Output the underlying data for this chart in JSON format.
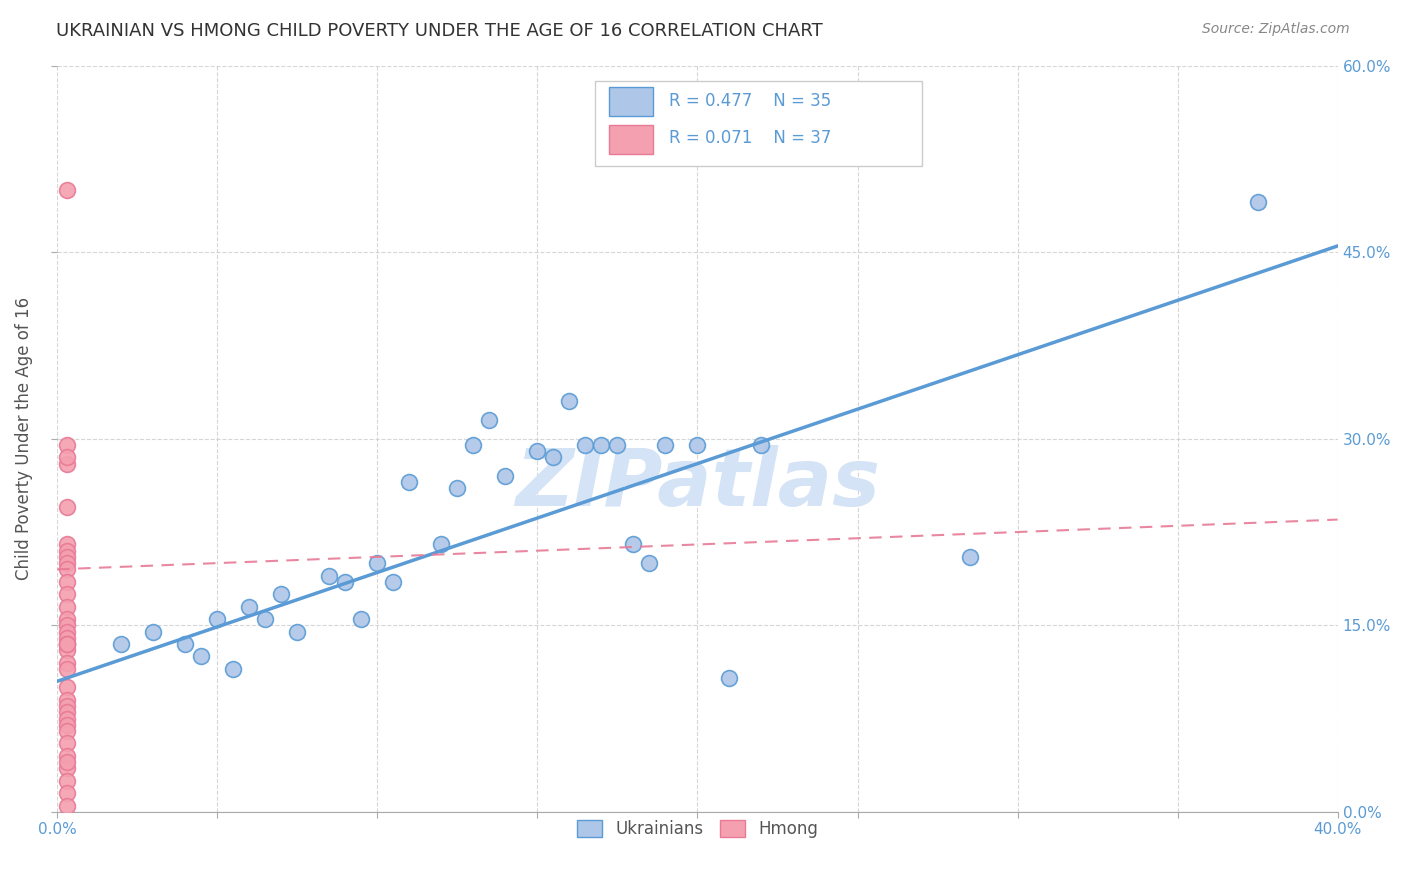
{
  "title": "UKRAINIAN VS HMONG CHILD POVERTY UNDER THE AGE OF 16 CORRELATION CHART",
  "source": "Source: ZipAtlas.com",
  "ylabel": "Child Poverty Under the Age of 16",
  "xlim": [
    0.0,
    0.4
  ],
  "ylim": [
    0.0,
    0.6
  ],
  "xticks": [
    0.0,
    0.05,
    0.1,
    0.15,
    0.2,
    0.25,
    0.3,
    0.35,
    0.4
  ],
  "xtick_labels_show": [
    0.0,
    0.4
  ],
  "yticks": [
    0.0,
    0.15,
    0.3,
    0.45,
    0.6
  ],
  "ytick_labels": [
    "0.0%",
    "15.0%",
    "30.0%",
    "45.0%",
    "60.0%"
  ],
  "watermark": "ZIPatlas",
  "blue_line": {
    "x0": 0.0,
    "y0": 0.105,
    "x1": 0.4,
    "y1": 0.455
  },
  "pink_line": {
    "x0": 0.0,
    "y0": 0.195,
    "x1": 0.4,
    "y1": 0.235
  },
  "ukrainians_x": [
    0.02,
    0.03,
    0.04,
    0.045,
    0.05,
    0.055,
    0.06,
    0.065,
    0.07,
    0.075,
    0.085,
    0.09,
    0.095,
    0.1,
    0.105,
    0.11,
    0.12,
    0.125,
    0.13,
    0.135,
    0.14,
    0.15,
    0.155,
    0.16,
    0.165,
    0.17,
    0.175,
    0.18,
    0.185,
    0.19,
    0.2,
    0.21,
    0.22,
    0.285,
    0.375
  ],
  "ukrainians_y": [
    0.135,
    0.145,
    0.135,
    0.125,
    0.155,
    0.115,
    0.165,
    0.155,
    0.175,
    0.145,
    0.19,
    0.185,
    0.155,
    0.2,
    0.185,
    0.265,
    0.215,
    0.26,
    0.295,
    0.315,
    0.27,
    0.29,
    0.285,
    0.33,
    0.295,
    0.295,
    0.295,
    0.215,
    0.2,
    0.295,
    0.295,
    0.108,
    0.295,
    0.205,
    0.49
  ],
  "hmong_x": [
    0.003,
    0.003,
    0.003,
    0.003,
    0.003,
    0.003,
    0.003,
    0.003,
    0.003,
    0.003,
    0.003,
    0.003,
    0.003,
    0.003,
    0.003,
    0.003,
    0.003,
    0.003,
    0.003,
    0.003,
    0.003,
    0.003,
    0.003,
    0.003,
    0.003,
    0.003,
    0.003,
    0.003,
    0.003,
    0.003,
    0.003,
    0.003,
    0.003,
    0.003,
    0.003,
    0.003,
    0.003
  ],
  "hmong_y": [
    0.5,
    0.295,
    0.28,
    0.245,
    0.215,
    0.21,
    0.205,
    0.2,
    0.195,
    0.185,
    0.175,
    0.165,
    0.155,
    0.15,
    0.145,
    0.14,
    0.135,
    0.13,
    0.12,
    0.115,
    0.1,
    0.09,
    0.085,
    0.08,
    0.075,
    0.07,
    0.065,
    0.055,
    0.045,
    0.035,
    0.025,
    0.015,
    0.005,
    0.135,
    0.135,
    0.285,
    0.04
  ],
  "background_color": "#ffffff",
  "grid_color": "#cccccc",
  "blue_color": "#5b9bd5",
  "blue_fill": "#aec6e8",
  "pink_color": "#e87a96",
  "pink_fill": "#f4a0b0",
  "title_color": "#333333",
  "axis_color": "#5b9bd5",
  "watermark_color": "#d4e3f5"
}
